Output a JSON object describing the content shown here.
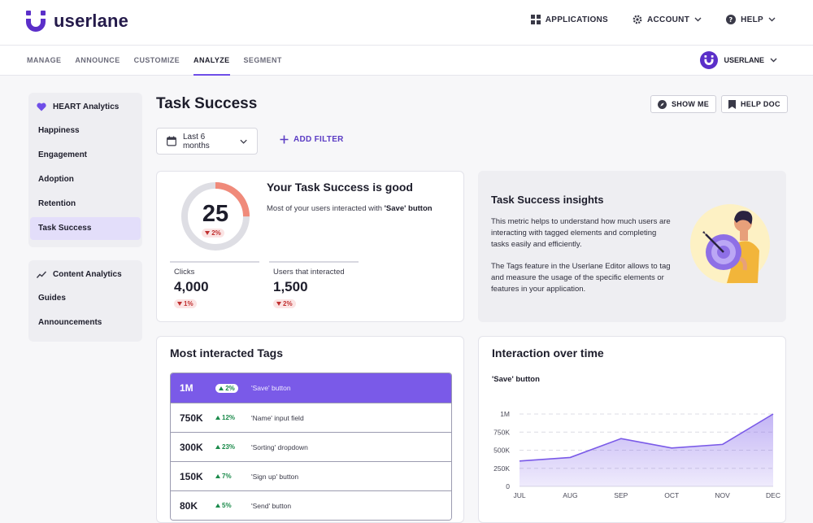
{
  "brand": {
    "name": "userlane",
    "accent": "#6f4ee8",
    "logo_color": "#5b2fc9"
  },
  "top_actions": [
    {
      "label": "APPLICATIONS",
      "icon": "grid-icon"
    },
    {
      "label": "ACCOUNT",
      "icon": "gear-icon"
    },
    {
      "label": "HELP",
      "icon": "question-icon"
    }
  ],
  "tabs": [
    "MANAGE",
    "ANNOUNCE",
    "CUSTOMIZE",
    "ANALYZE",
    "SEGMENT"
  ],
  "active_tab": "ANALYZE",
  "user": {
    "label": "USERLANE"
  },
  "sidebar": {
    "heart": {
      "title": "HEART Analytics",
      "items": [
        "Happiness",
        "Engagement",
        "Adoption",
        "Retention",
        "Task Success"
      ]
    },
    "content": {
      "title": "Content Analytics",
      "items": [
        "Guides",
        "Announcements"
      ]
    }
  },
  "page": {
    "title": "Task Success",
    "show_me": "SHOW ME",
    "help_doc": "HELP DOC",
    "date_range": "Last 6 months",
    "add_filter": "ADD FILTER"
  },
  "score": {
    "value": "25",
    "change": "2%",
    "fraction": 0.25,
    "title": "Your Task Success is good",
    "sub_prefix": "Most of your users interacted with ",
    "sub_bold": "'Save' button",
    "metrics": [
      {
        "label": "Clicks",
        "value": "4,000",
        "change": "1%"
      },
      {
        "label": "Users that interacted",
        "value": "1,500",
        "change": "2%"
      }
    ]
  },
  "insights": {
    "title": "Task Success insights",
    "p1": "This metric helps to understand how much users are interacting with tagged elements and completing tasks easily and efficiently.",
    "p2": "The Tags feature in the Userlane Editor allows to tag and measure the usage of the specific elements or features in your application."
  },
  "tags": {
    "title": "Most interacted Tags",
    "rows": [
      {
        "value": "1M",
        "change": "2%",
        "name": "'Save' button"
      },
      {
        "value": "750K",
        "change": "12%",
        "name": "'Name' input field"
      },
      {
        "value": "300K",
        "change": "23%",
        "name": "'Sorting' dropdown"
      },
      {
        "value": "150K",
        "change": "7%",
        "name": "'Sign up' button"
      },
      {
        "value": "80K",
        "change": "5%",
        "name": "'Send' button"
      }
    ]
  },
  "chart_data": {
    "type": "area",
    "title": "Interaction over time",
    "subtitle": "'Save' button",
    "categories": [
      "JUL",
      "AUG",
      "SEP",
      "OCT",
      "NOV",
      "DEC"
    ],
    "values": [
      350000,
      400000,
      660000,
      530000,
      580000,
      1000000
    ],
    "yticks": [
      "0",
      "250K",
      "500K",
      "750K",
      "1M"
    ],
    "ytick_values": [
      0,
      250000,
      500000,
      750000,
      1000000
    ],
    "ylim": [
      0,
      1000000
    ],
    "grid": true,
    "color": "#7a5ae8"
  }
}
